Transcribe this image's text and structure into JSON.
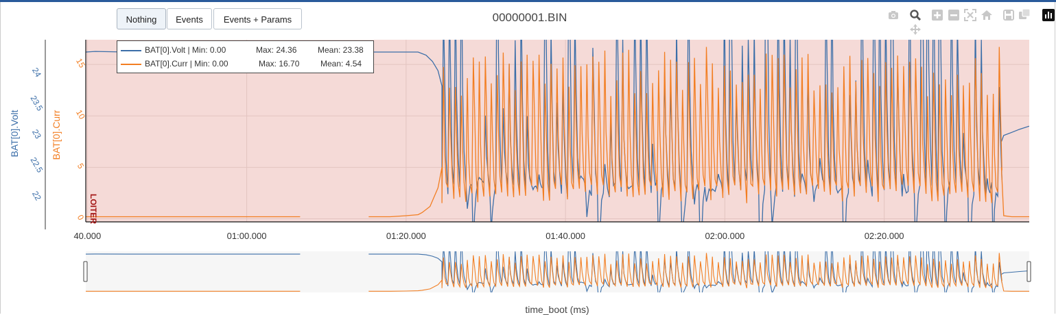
{
  "toolbar": {
    "buttons": [
      {
        "label": "Nothing",
        "active": true
      },
      {
        "label": "Events",
        "active": false
      },
      {
        "label": "Events + Params",
        "active": false
      }
    ]
  },
  "title": "00000001.BIN",
  "mode_label": "LOITER",
  "legend": {
    "volt": {
      "name": "BAT[0].Volt | Min: 0.00",
      "max": "Max: 24.36",
      "mean": "Mean: 23.38"
    },
    "curr": {
      "name": "BAT[0].Curr | Min: 0.00",
      "max": "Max: 16.70",
      "mean": "Mean: 4.54"
    }
  },
  "modebar_icons": [
    "camera-icon",
    "zoom-icon",
    "pan-icon",
    "zoom-in-icon",
    "zoom-out-icon",
    "autoscale-icon",
    "home-icon",
    "save-icon",
    "compare-icon",
    "plotly-logo-icon"
  ],
  "colors": {
    "volt": "#3b6ea8",
    "curr": "#f27e22",
    "mode_bg": "#f5dad7",
    "mode_text": "#a31515"
  },
  "chart_data": {
    "type": "line",
    "title": "00000001.BIN",
    "xlabel": "time_boot (ms)",
    "x_ticks": [
      "40.000",
      "01:00.000",
      "01:20.000",
      "01:40.000",
      "02:00.000",
      "02:20.000"
    ],
    "x_tick_seconds": [
      40,
      60,
      80,
      100,
      120,
      140
    ],
    "xlim_seconds": [
      39.8,
      158.2
    ],
    "y_axes": [
      {
        "label": "BAT[0].Volt",
        "ticks": [
          "22",
          "22.5",
          "23",
          "23.5",
          "24"
        ],
        "range": [
          21.6,
          24.55
        ],
        "color": "#3b6ea8"
      },
      {
        "label": "BAT[0].Curr",
        "ticks": [
          "0",
          "5",
          "10",
          "15"
        ],
        "range": [
          -0.3,
          17.4
        ],
        "color": "#f27e22"
      }
    ],
    "series": [
      {
        "name": "BAT[0].Volt",
        "color": "#3b6ea8",
        "segments": [
          {
            "x": [
              39.8,
              41,
              45,
              50,
              55,
              60,
              65,
              66.7
            ],
            "y": [
              24.35,
              24.36,
              24.35,
              24.35,
              24.35,
              24.35,
              24.35,
              24.35
            ]
          },
          {
            "x": [
              75.3,
              78,
              80,
              81.5,
              82.5,
              83.3,
              84,
              84.5
            ],
            "y": [
              24.35,
              24.35,
              24.35,
              24.35,
              24.3,
              24.2,
              24.05,
              23.8
            ]
          },
          {
            "x": [
              154.7,
              155,
              156,
              157,
              158.2
            ],
            "y": [
              22.9,
              23.0,
              23.05,
              23.1,
              23.15
            ]
          }
        ],
        "oscillation": {
          "x_start": 84.5,
          "x_end": 154.7,
          "period_s": 0.75,
          "y_high": 23.9,
          "y_low": 22.0
        }
      },
      {
        "name": "BAT[0].Curr",
        "color": "#f27e22",
        "segments": [
          {
            "x": [
              39.8,
              45,
              50,
              55,
              60,
              66.7
            ],
            "y": [
              0.2,
              0.2,
              0.2,
              0.2,
              0.2,
              0.2
            ]
          },
          {
            "x": [
              75.3,
              78,
              80,
              81.5,
              82,
              83,
              84,
              84.5
            ],
            "y": [
              0.2,
              0.2,
              0.3,
              0.4,
              0.6,
              1.2,
              3.0,
              5.0
            ]
          },
          {
            "x": [
              154.7,
              155,
              156,
              157,
              158.2
            ],
            "y": [
              5.0,
              0.3,
              0.2,
              0.2,
              0.2
            ]
          }
        ],
        "oscillation": {
          "x_start": 84.5,
          "x_end": 154.7,
          "period_s": 0.75,
          "y_high": 14.0,
          "y_low": 1.5,
          "peak_max": 16.7
        }
      }
    ],
    "mode_regions": [
      {
        "label": "LOITER",
        "x_start_seconds": 39.8,
        "x_end_seconds": 158.2
      }
    ]
  }
}
